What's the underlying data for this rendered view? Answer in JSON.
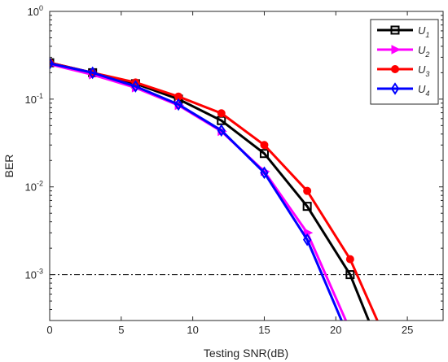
{
  "chart_data": {
    "type": "line",
    "xlabel": "Testing SNR(dB)",
    "ylabel": "BER",
    "xlim": [
      0,
      27.5
    ],
    "ylim": [
      0.0003,
      1
    ],
    "yscale": "log",
    "xticks": [
      0,
      5,
      10,
      15,
      20,
      25
    ],
    "xtick_labels": [
      "0",
      "5",
      "10",
      "15",
      "20",
      "25"
    ],
    "yticks": [
      0.001,
      0.01,
      0.1,
      1
    ],
    "ytick_labels": [
      {
        "base": "10",
        "exp": "-3"
      },
      {
        "base": "10",
        "exp": "-2"
      },
      {
        "base": "10",
        "exp": "-1"
      },
      {
        "base": "10",
        "exp": "0"
      }
    ],
    "grid": false,
    "legend_position": "top-right",
    "reference_line": {
      "y": 0.001,
      "style": "dash-dot",
      "color": "#000000"
    },
    "series": [
      {
        "name": "U",
        "sub": "1",
        "color": "#000000",
        "marker": "square",
        "x": [
          0,
          3,
          6,
          9,
          12,
          15,
          18,
          21,
          22.3
        ],
        "y": [
          0.26,
          0.2,
          0.15,
          0.1,
          0.057,
          0.024,
          0.006,
          0.001,
          0.0003
        ]
      },
      {
        "name": "U",
        "sub": "2",
        "color": "#ff00ff",
        "marker": "triangle-right",
        "x": [
          0,
          3,
          6,
          9,
          12,
          15,
          18,
          20.7
        ],
        "y": [
          0.25,
          0.19,
          0.135,
          0.085,
          0.043,
          0.015,
          0.003,
          0.0003
        ]
      },
      {
        "name": "U",
        "sub": "3",
        "color": "#ff0000",
        "marker": "circle",
        "x": [
          0,
          3,
          6,
          9,
          12,
          15,
          18,
          21,
          22.9
        ],
        "y": [
          0.26,
          0.2,
          0.155,
          0.107,
          0.069,
          0.03,
          0.009,
          0.0015,
          0.0003
        ]
      },
      {
        "name": "U",
        "sub": "4",
        "color": "#0000ff",
        "marker": "diamond",
        "x": [
          0,
          3,
          6,
          9,
          12,
          15,
          18,
          20.4
        ],
        "y": [
          0.255,
          0.2,
          0.14,
          0.087,
          0.044,
          0.0145,
          0.0025,
          0.0003
        ]
      }
    ]
  }
}
